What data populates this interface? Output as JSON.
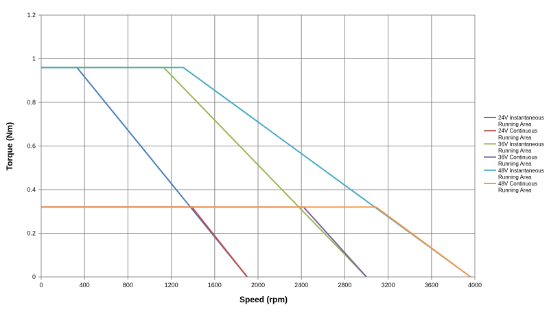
{
  "chart_data": {
    "type": "line",
    "xlabel": "Speed (rpm)",
    "ylabel": "Torque (Nm)",
    "xlim": [
      0,
      4000
    ],
    "ylim": [
      0,
      1.2
    ],
    "x_ticks": [
      "0",
      "400",
      "800",
      "1200",
      "1600",
      "2000",
      "2400",
      "2800",
      "3200",
      "3600",
      "4000"
    ],
    "y_ticks": [
      "0",
      "0.2",
      "0.4",
      "0.6",
      "0.8",
      "1",
      "1.2"
    ],
    "grid": true,
    "legend_position": "right",
    "series": [
      {
        "name_lines": [
          "24V Instantaneous",
          "Running Area"
        ],
        "color": "#4a7ebb",
        "points": [
          [
            0,
            0.96
          ],
          [
            330,
            0.96
          ],
          [
            1900,
            0
          ]
        ]
      },
      {
        "name_lines": [
          "24V Continuous",
          "Running Area"
        ],
        "color": "#be4b48",
        "points": [
          [
            0,
            0.32
          ],
          [
            1390,
            0.32
          ],
          [
            1900,
            0
          ]
        ]
      },
      {
        "name_lines": [
          "36V Instantaneous",
          "Running Area"
        ],
        "color": "#98b954",
        "points": [
          [
            0,
            0.96
          ],
          [
            1130,
            0.96
          ],
          [
            3000,
            0
          ]
        ]
      },
      {
        "name_lines": [
          "36V Continuous",
          "Running Area"
        ],
        "color": "#7d60a0",
        "points": [
          [
            0,
            0.32
          ],
          [
            2420,
            0.32
          ],
          [
            3000,
            0
          ]
        ]
      },
      {
        "name_lines": [
          "48V Instantaneous",
          "Running Area"
        ],
        "color": "#46aac5",
        "points": [
          [
            0,
            0.96
          ],
          [
            1310,
            0.96
          ],
          [
            3960,
            0
          ]
        ]
      },
      {
        "name_lines": [
          "48V Continuous",
          "Running Area"
        ],
        "color": "#f79646",
        "points": [
          [
            0,
            0.32
          ],
          [
            3090,
            0.32
          ],
          [
            3960,
            0
          ]
        ]
      }
    ]
  }
}
